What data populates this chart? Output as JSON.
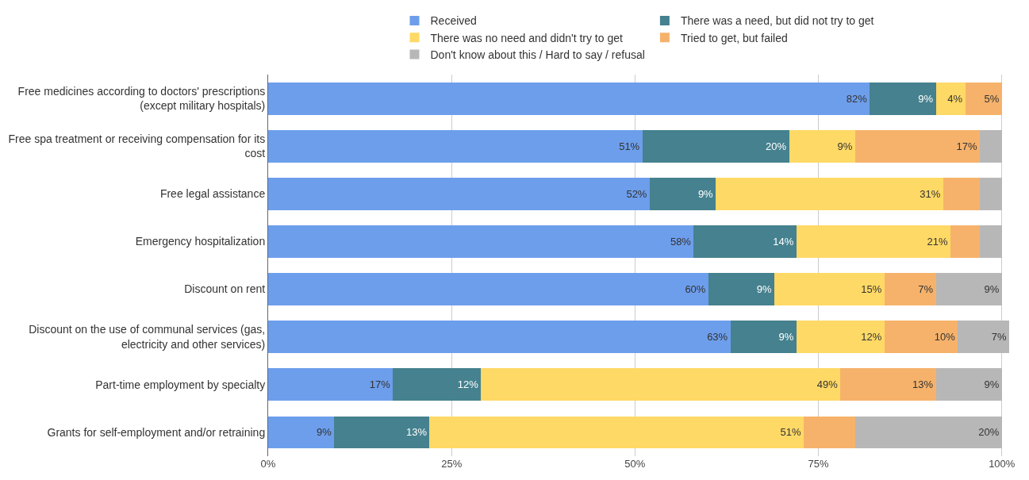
{
  "chart_data": {
    "type": "bar",
    "orientation": "horizontal",
    "stacked": true,
    "categories": [
      "Free medicines according to doctors' prescriptions (except military hospitals)",
      "Free spa treatment or receiving compensation for its cost",
      "Free legal assistance",
      "Emergency hospitalization",
      "Discount on rent",
      "Discount on the use of communal services (gas, electricity and other services)",
      "Part-time employment by specialty",
      "Grants for self-employment and/or retraining"
    ],
    "series": [
      {
        "name": "Received",
        "color": "#6d9eeb",
        "values": [
          82,
          51,
          52,
          58,
          60,
          63,
          17,
          9
        ],
        "value_labels": [
          "82%",
          "51%",
          "52%",
          "58%",
          "60%",
          "63%",
          "17%",
          "9%"
        ]
      },
      {
        "name": "There was a need, but did not try to get",
        "color": "#45818e",
        "values": [
          9,
          20,
          9,
          14,
          9,
          9,
          12,
          13
        ],
        "value_labels": [
          "9%",
          "20%",
          "9%",
          "14%",
          "9%",
          "9%",
          "12%",
          "13%"
        ]
      },
      {
        "name": "There was no need and didn't try to get",
        "color": "#ffd966",
        "values": [
          4,
          9,
          31,
          21,
          15,
          12,
          49,
          51
        ],
        "value_labels": [
          "4%",
          "9%",
          "31%",
          "21%",
          "15%",
          "12%",
          "49%",
          "51%"
        ]
      },
      {
        "name": "Tried to get, but failed",
        "color": "#f6b26b",
        "values": [
          5,
          17,
          5,
          4,
          7,
          10,
          13,
          7
        ],
        "value_labels": [
          "5%",
          "17%",
          null,
          null,
          "7%",
          "10%",
          "13%",
          null
        ]
      },
      {
        "name": "Don't know about this / Hard to say / refusal",
        "color": "#b7b7b7",
        "values": [
          0,
          3,
          3,
          3,
          9,
          7,
          9,
          20
        ],
        "value_labels": [
          null,
          null,
          null,
          null,
          "9%",
          "7%",
          "9%",
          "20%"
        ]
      }
    ],
    "xlim": [
      0,
      101
    ],
    "xticks": [
      {
        "value": 0,
        "label": "0%"
      },
      {
        "value": 25,
        "label": "25%"
      },
      {
        "value": 50,
        "label": "50%"
      },
      {
        "value": 75,
        "label": "75%"
      },
      {
        "value": 100,
        "label": "100%"
      }
    ],
    "grid": "x",
    "legend": "top"
  }
}
